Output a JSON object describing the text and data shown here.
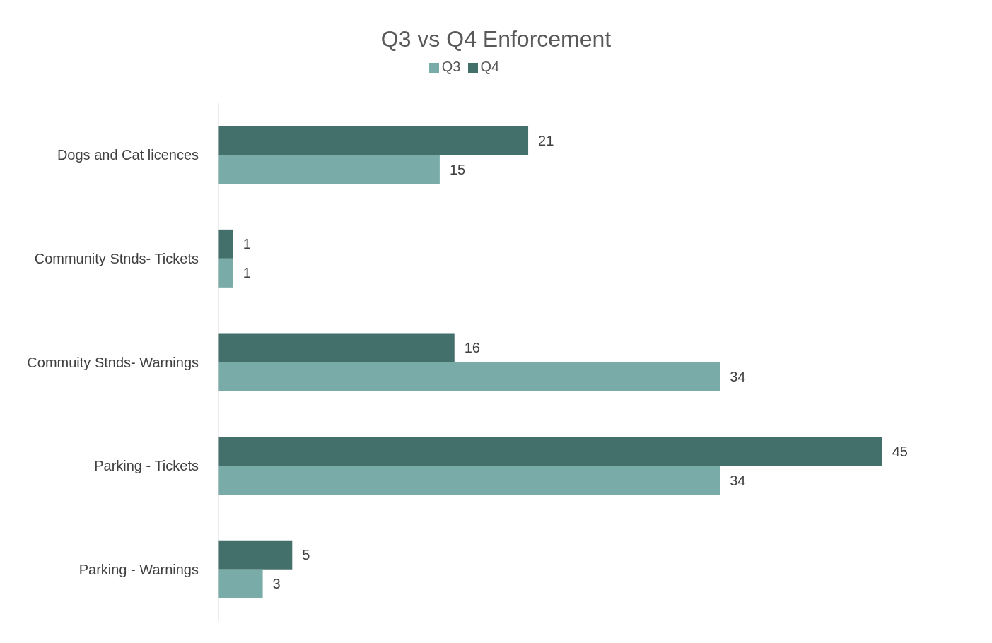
{
  "chart_data": {
    "type": "bar",
    "orientation": "horizontal",
    "title": "Q3 vs Q4 Enforcement",
    "categories": [
      "Dogs and Cat licences",
      "Community Stnds- Tickets",
      "Commuity Stnds- Warnings",
      "Parking - Tickets",
      "Parking - Warnings"
    ],
    "series": [
      {
        "name": "Q4",
        "color": "#44706c",
        "values": [
          21,
          1,
          16,
          45,
          5
        ]
      },
      {
        "name": "Q3",
        "color": "#79aca8",
        "values": [
          15,
          1,
          34,
          34,
          3
        ]
      }
    ],
    "data_labels": true,
    "legend": "top"
  }
}
